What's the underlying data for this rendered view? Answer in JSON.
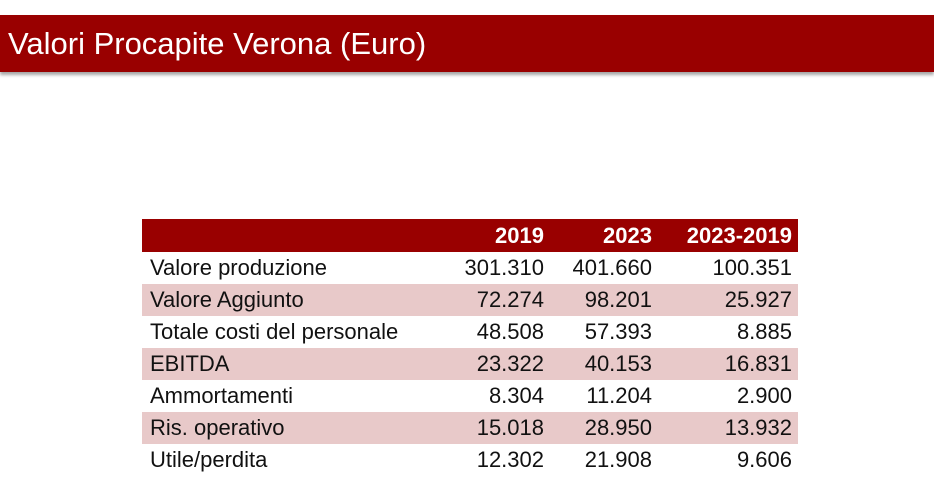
{
  "title": "Valori Procapite Verona (Euro)",
  "table": {
    "headers": [
      "",
      "2019",
      "2023",
      "2023-2019"
    ],
    "rows": [
      {
        "label": "Valore produzione",
        "v2019": "301.310",
        "v2023": "401.660",
        "diff": "100.351"
      },
      {
        "label": "Valore Aggiunto",
        "v2019": "72.274",
        "v2023": "98.201",
        "diff": "25.927"
      },
      {
        "label": "Totale costi del personale",
        "v2019": "48.508",
        "v2023": "57.393",
        "diff": "8.885"
      },
      {
        "label": "EBITDA",
        "v2019": "23.322",
        "v2023": "40.153",
        "diff": "16.831"
      },
      {
        "label": "Ammortamenti",
        "v2019": "8.304",
        "v2023": "11.204",
        "diff": "2.900"
      },
      {
        "label": "Ris. operativo",
        "v2019": "15.018",
        "v2023": "28.950",
        "diff": "13.932"
      },
      {
        "label": "Utile/perdita",
        "v2019": "12.302",
        "v2023": "21.908",
        "diff": "9.606"
      }
    ]
  },
  "colors": {
    "accent": "#990000",
    "row_shade": "#e8c9c9"
  }
}
